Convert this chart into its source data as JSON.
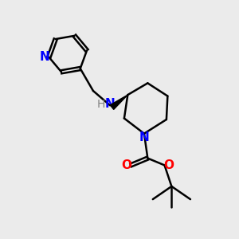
{
  "background_color": "#ebebeb",
  "bond_color": "#000000",
  "nitrogen_color": "#0000ff",
  "oxygen_color": "#ff0000",
  "bond_width": 1.8,
  "figsize": [
    3.0,
    3.0
  ],
  "dpi": 100,
  "xlim": [
    0,
    10
  ],
  "ylim": [
    0,
    10
  ]
}
